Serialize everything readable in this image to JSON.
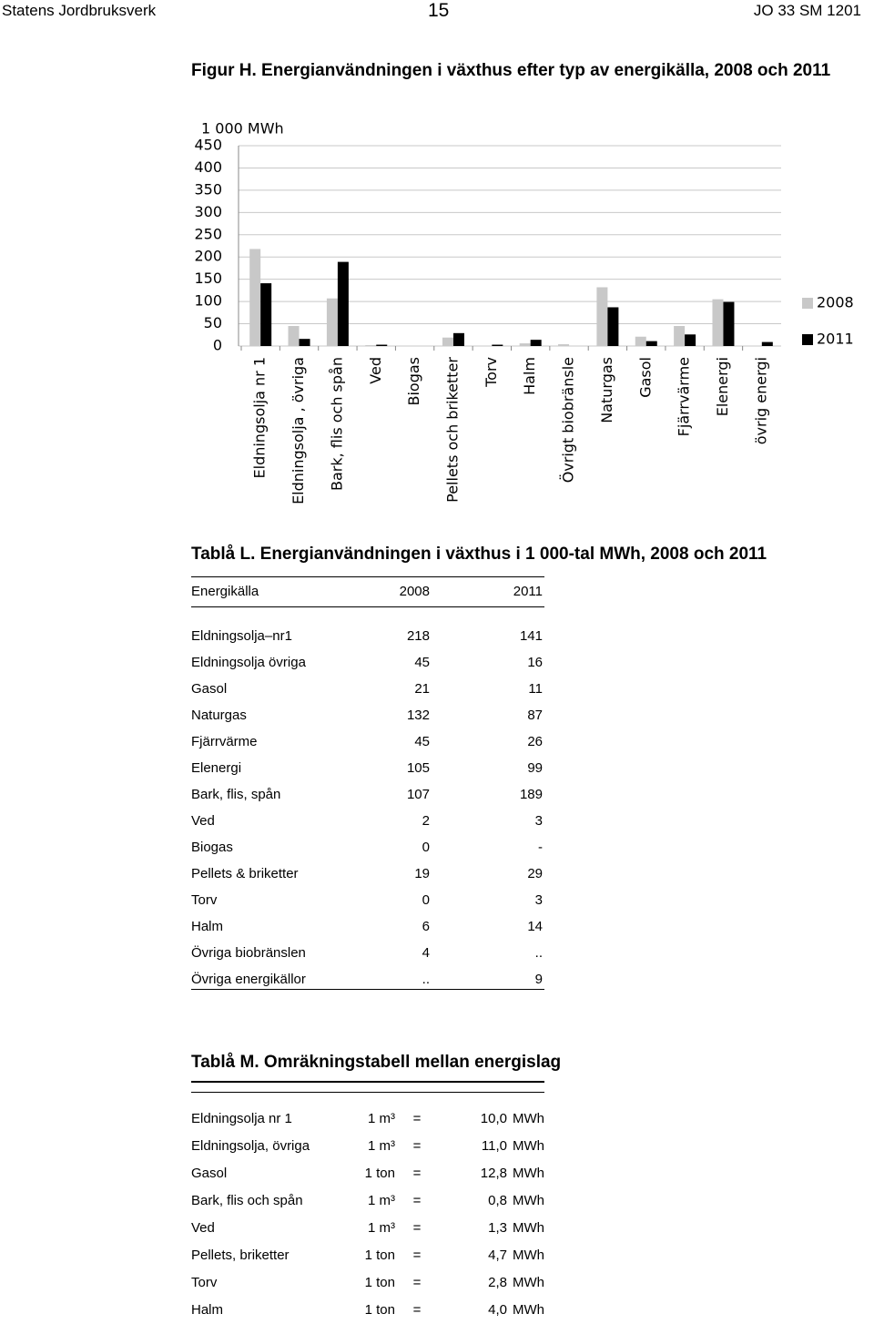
{
  "header": {
    "left": "Statens Jordbruksverk",
    "page": "15",
    "right": "JO 33 SM 1201"
  },
  "chart_data": {
    "type": "bar",
    "title": "Figur H. Energianvändningen i växthus efter typ av energikälla, 2008 och 2011",
    "y_label": "1 000 MWh",
    "categories": [
      "Eldningsolja nr 1",
      "Eldningsolja , övriga",
      "Bark, flis och spån",
      "Ved",
      "Biogas",
      "Pellets och briketter",
      "Torv",
      "Halm",
      "Övrigt biobränsle",
      "Naturgas",
      "Gasol",
      "Fjärrvärme",
      "Elenergi",
      "övrig energi"
    ],
    "series": [
      {
        "name": "2008",
        "color": "#c8c8c8",
        "values": [
          218,
          45,
          107,
          2,
          0,
          19,
          0,
          6,
          4,
          132,
          21,
          45,
          105,
          null
        ]
      },
      {
        "name": "2011",
        "color": "#000000",
        "values": [
          141,
          16,
          189,
          3,
          null,
          29,
          3,
          14,
          null,
          87,
          11,
          26,
          99,
          9
        ]
      }
    ],
    "ylim": [
      0,
      450
    ],
    "yticks": [
      0,
      50,
      100,
      150,
      200,
      250,
      300,
      350,
      400,
      450
    ],
    "grid": true,
    "legend": "right"
  },
  "table_l": {
    "title": "Tablå L. Energianvändningen i växthus i 1 000-tal MWh, 2008 och 2011",
    "columns": [
      "Energikälla",
      "2008",
      "2011"
    ],
    "rows": [
      [
        "Eldningsolja–nr1",
        218,
        141
      ],
      [
        "Eldningsolja övriga",
        45,
        16
      ],
      [
        "Gasol",
        21,
        11
      ],
      [
        "Naturgas",
        132,
        87
      ],
      [
        "Fjärrvärme",
        45,
        26
      ],
      [
        "Elenergi",
        105,
        99
      ],
      [
        "Bark, flis, spån",
        107,
        189
      ],
      [
        "Ved",
        2,
        3
      ],
      [
        "Biogas",
        0,
        "-"
      ],
      [
        "Pellets & briketter",
        19,
        29
      ],
      [
        "Torv",
        0,
        3
      ],
      [
        "Halm",
        6,
        14
      ],
      [
        "Övriga biobräns­len",
        4,
        ".."
      ],
      [
        "Övriga energikäl­lor",
        "..",
        9
      ]
    ]
  },
  "table_m": {
    "title": "Tablå M. Omräkningstabell mellan energislag",
    "rows": [
      [
        "Eldningsolja nr 1",
        "1 m³",
        "=",
        "10,0",
        "MWh"
      ],
      [
        "Eldningsolja, övriga",
        "1 m³",
        "=",
        "11,0",
        "MWh"
      ],
      [
        "Gasol",
        "1 ton",
        "=",
        "12,8",
        "MWh"
      ],
      [
        "Bark, flis och spån",
        "1 m³",
        "=",
        "0,8",
        "MWh"
      ],
      [
        "Ved",
        "1 m³",
        "=",
        "1,3",
        "MWh"
      ],
      [
        "Pellets, briketter",
        "1 ton",
        "=",
        "4,7",
        "MWh"
      ],
      [
        "Torv",
        "1 ton",
        "=",
        "2,8",
        "MWh"
      ],
      [
        "Halm",
        "1 ton",
        "=",
        "4,0",
        "MWh"
      ]
    ]
  }
}
